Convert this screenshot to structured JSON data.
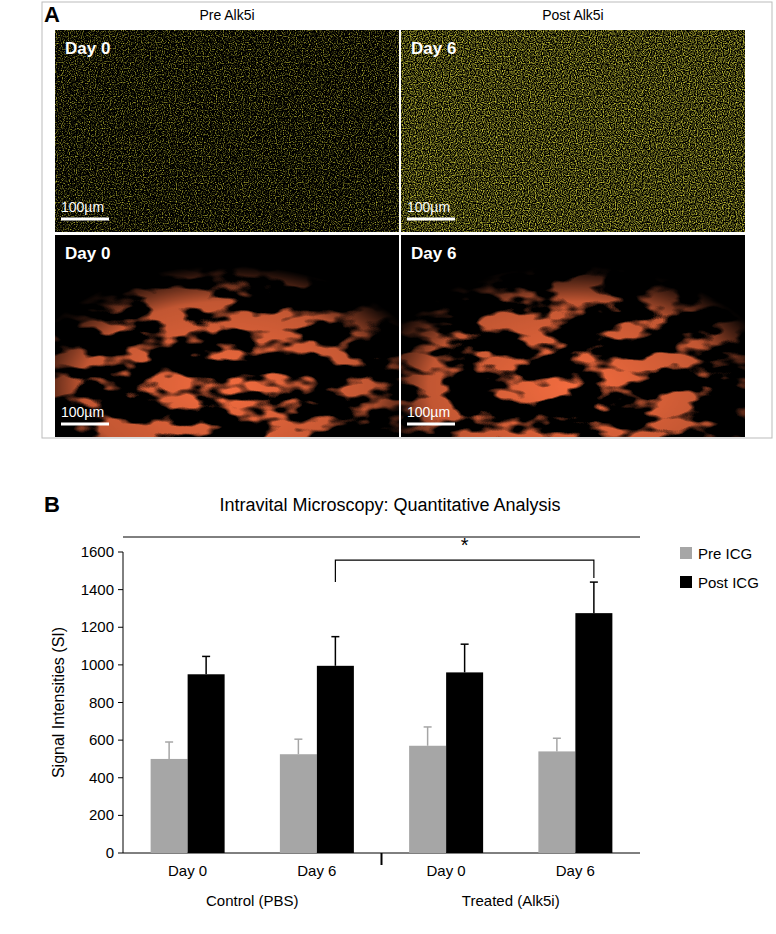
{
  "panel_a": {
    "label": "A",
    "columns": [
      "Pre Alk5i",
      "Post Alk5i"
    ],
    "rows": [
      {
        "images": [
          {
            "day": "Day 0",
            "scale_bar": "100µm"
          },
          {
            "day": "Day 6",
            "scale_bar": "100µm"
          }
        ]
      },
      {
        "images": [
          {
            "day": "Day 0",
            "scale_bar": "100µm"
          },
          {
            "day": "Day 6",
            "scale_bar": "100µm"
          }
        ]
      }
    ]
  },
  "chart_data": {
    "panel_label": "B",
    "type": "bar",
    "title": "Intravital Microscopy: Quantitative Analysis",
    "y_label": "Signal Intensities (SI)",
    "categories": [
      "Day 0",
      "Day 6",
      "Day 0",
      "Day 6"
    ],
    "groups": [
      "Control (PBS)",
      "Treated (Alk5i)"
    ],
    "series": [
      {
        "name": "Pre ICG",
        "color": "#a6a6a6",
        "values": [
          500,
          525,
          570,
          540
        ],
        "errors": [
          90,
          80,
          100,
          70
        ]
      },
      {
        "name": "Post ICG",
        "color": "#000000",
        "values": [
          950,
          995,
          960,
          1275
        ],
        "errors": [
          95,
          155,
          150,
          165
        ]
      }
    ],
    "ylim": [
      0,
      1600
    ],
    "yticks": [
      0,
      200,
      400,
      600,
      800,
      1000,
      1200,
      1400,
      1600
    ],
    "legend": "right",
    "annotations": [
      {
        "text": "*",
        "series": 1,
        "from": 1,
        "to": 3
      }
    ]
  }
}
